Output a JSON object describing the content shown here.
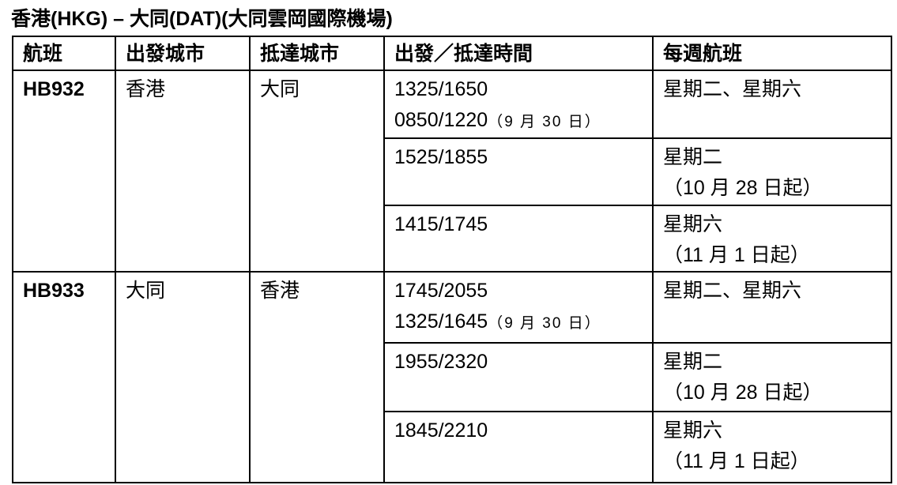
{
  "title": "香港(HKG) – 大同(DAT)(大同雲岡國際機場)",
  "headers": [
    "航班",
    "出發城市",
    "抵達城市",
    "出發／抵達時間",
    "每週航班"
  ],
  "flights": [
    {
      "flight": "HB932",
      "from": "香港",
      "to": "大同",
      "slots": [
        {
          "time": "1325/1650",
          "time2": "0850/1220",
          "note": "（9 月 30 日）",
          "days": "星期二、星期六",
          "days2": ""
        },
        {
          "time": "1525/1855",
          "time2": "",
          "note": "",
          "days": "星期二",
          "days2": "（10 月 28 日起）"
        },
        {
          "time": "1415/1745",
          "time2": "",
          "note": "",
          "days": "星期六",
          "days2": "（11 月 1 日起）"
        }
      ]
    },
    {
      "flight": "HB933",
      "from": "大同",
      "to": "香港",
      "slots": [
        {
          "time": "1745/2055",
          "time2": "1325/1645",
          "note": "（9 月 30 日）",
          "days": "星期二、星期六",
          "days2": ""
        },
        {
          "time": "1955/2320",
          "time2": "",
          "note": "",
          "days": "星期二",
          "days2": "（10 月 28 日起）"
        },
        {
          "time": "1845/2210",
          "time2": "",
          "note": "",
          "days": "星期六",
          "days2": "（11 月 1 日起）"
        }
      ]
    }
  ]
}
